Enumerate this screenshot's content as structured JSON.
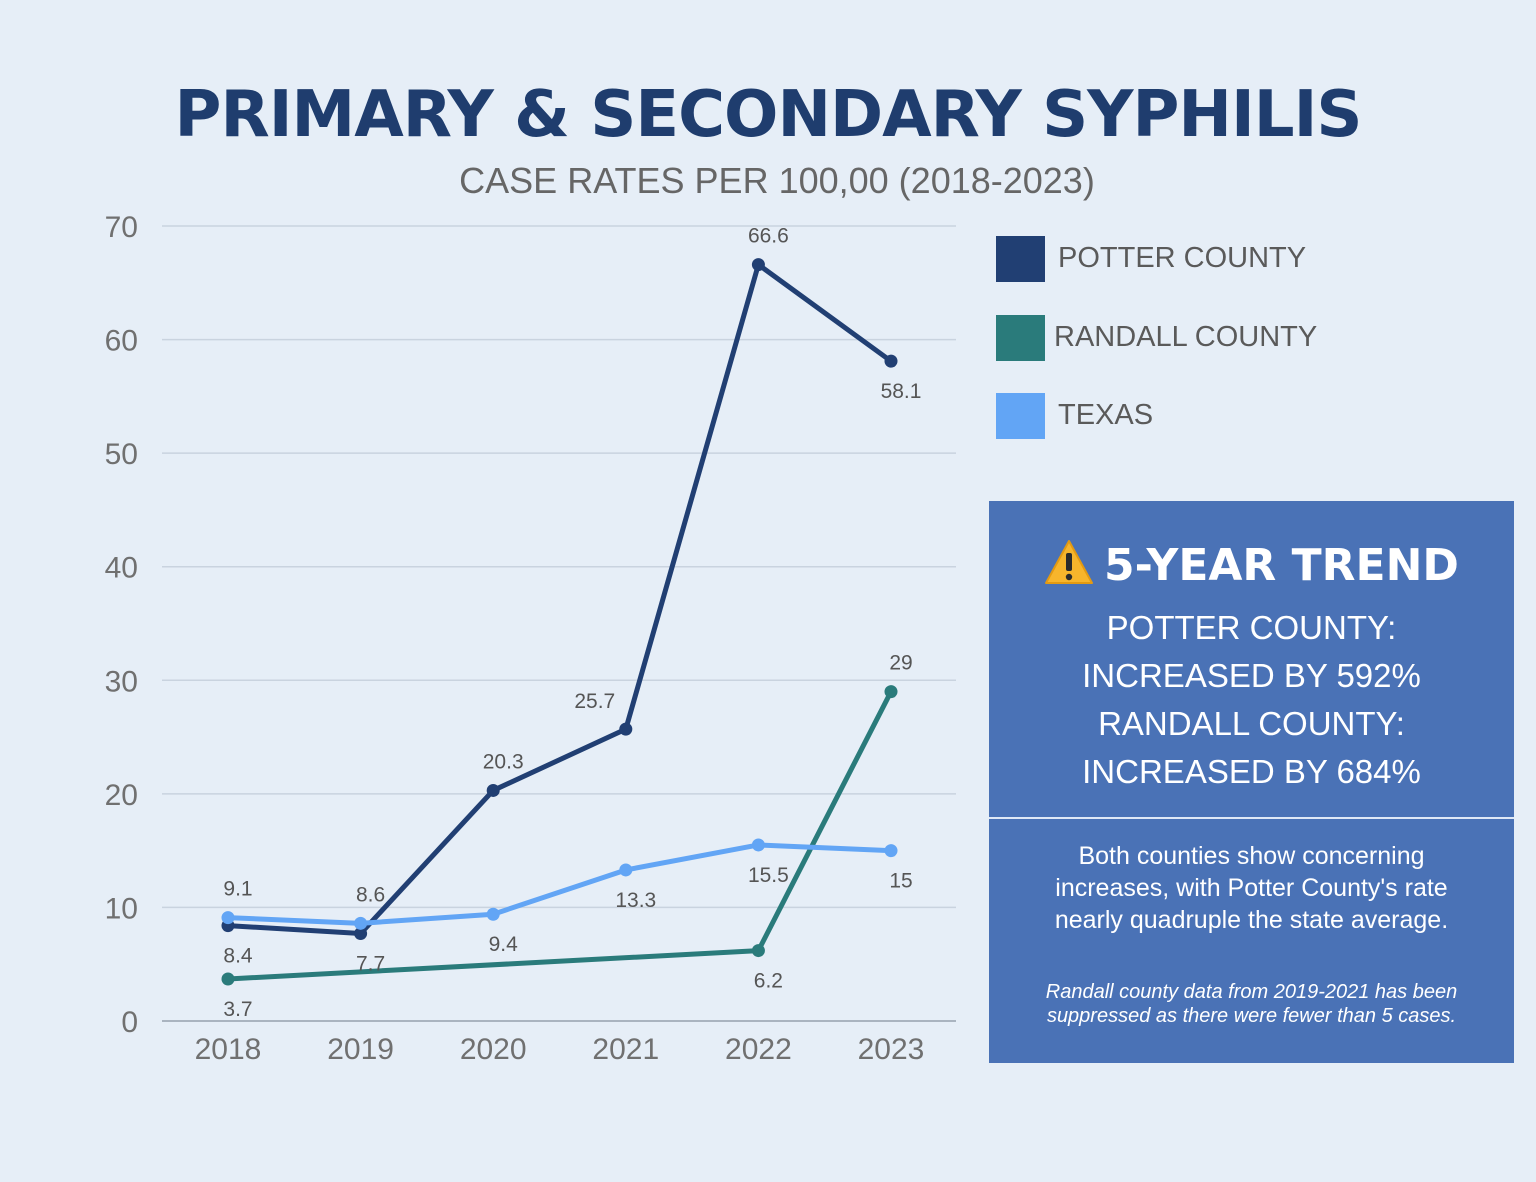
{
  "title": "PRIMARY & SECONDARY SYPHILIS",
  "subtitle": "CASE RATES PER 100,00 (2018-2023)",
  "chart_data": {
    "type": "line",
    "categories": [
      "2018",
      "2019",
      "2020",
      "2021",
      "2022",
      "2023"
    ],
    "ylim": [
      0,
      70
    ],
    "yticks": [
      0,
      10,
      20,
      30,
      40,
      50,
      60,
      70
    ],
    "grid": true,
    "xlabel": "",
    "ylabel": "",
    "legend_position": "right",
    "series": [
      {
        "name": "POTTER COUNTY",
        "color": "#213f73",
        "values": [
          8.4,
          7.7,
          20.3,
          25.7,
          66.6,
          58.1
        ],
        "labels": [
          "8.4",
          "7.7",
          "20.3",
          "25.7",
          "66.6",
          "58.1"
        ],
        "label_side": [
          "below",
          "below",
          "above",
          "above-left",
          "above",
          "below"
        ]
      },
      {
        "name": "RANDALL COUNTY",
        "color": "#2a7b7b",
        "values": [
          3.7,
          null,
          null,
          null,
          6.2,
          29
        ],
        "labels": [
          "3.7",
          null,
          null,
          null,
          "6.2",
          "29"
        ],
        "label_side": [
          "below",
          null,
          null,
          null,
          "below",
          "above"
        ]
      },
      {
        "name": "TEXAS",
        "color": "#62a5f5",
        "values": [
          9.1,
          8.6,
          9.4,
          13.3,
          15.5,
          15
        ],
        "labels": [
          "9.1",
          "8.6",
          "9.4",
          "13.3",
          "15.5",
          "15"
        ],
        "label_side": [
          "above",
          "above",
          "below",
          "below",
          "below",
          "below"
        ]
      }
    ]
  },
  "legend": {
    "items": [
      {
        "label": "POTTER COUNTY",
        "color": "#213f73"
      },
      {
        "label": "RANDALL COUNTY",
        "color": "#2a7b7b"
      },
      {
        "label": "TEXAS",
        "color": "#62a5f5"
      }
    ]
  },
  "panel": {
    "heading": "5-YEAR TREND",
    "icon": "warning-icon",
    "lines": [
      "POTTER COUNTY:",
      "INCREASED BY 592%",
      "RANDALL COUNTY:",
      "INCREASED BY 684%"
    ],
    "description": [
      "Both counties show concerning",
      "increases, with Potter County's rate",
      "nearly quadruple the state average."
    ],
    "note": [
      "Randall county data from 2019-2021 has been",
      "suppressed as there were fewer than 5 cases."
    ],
    "background": "#4a72b6"
  }
}
